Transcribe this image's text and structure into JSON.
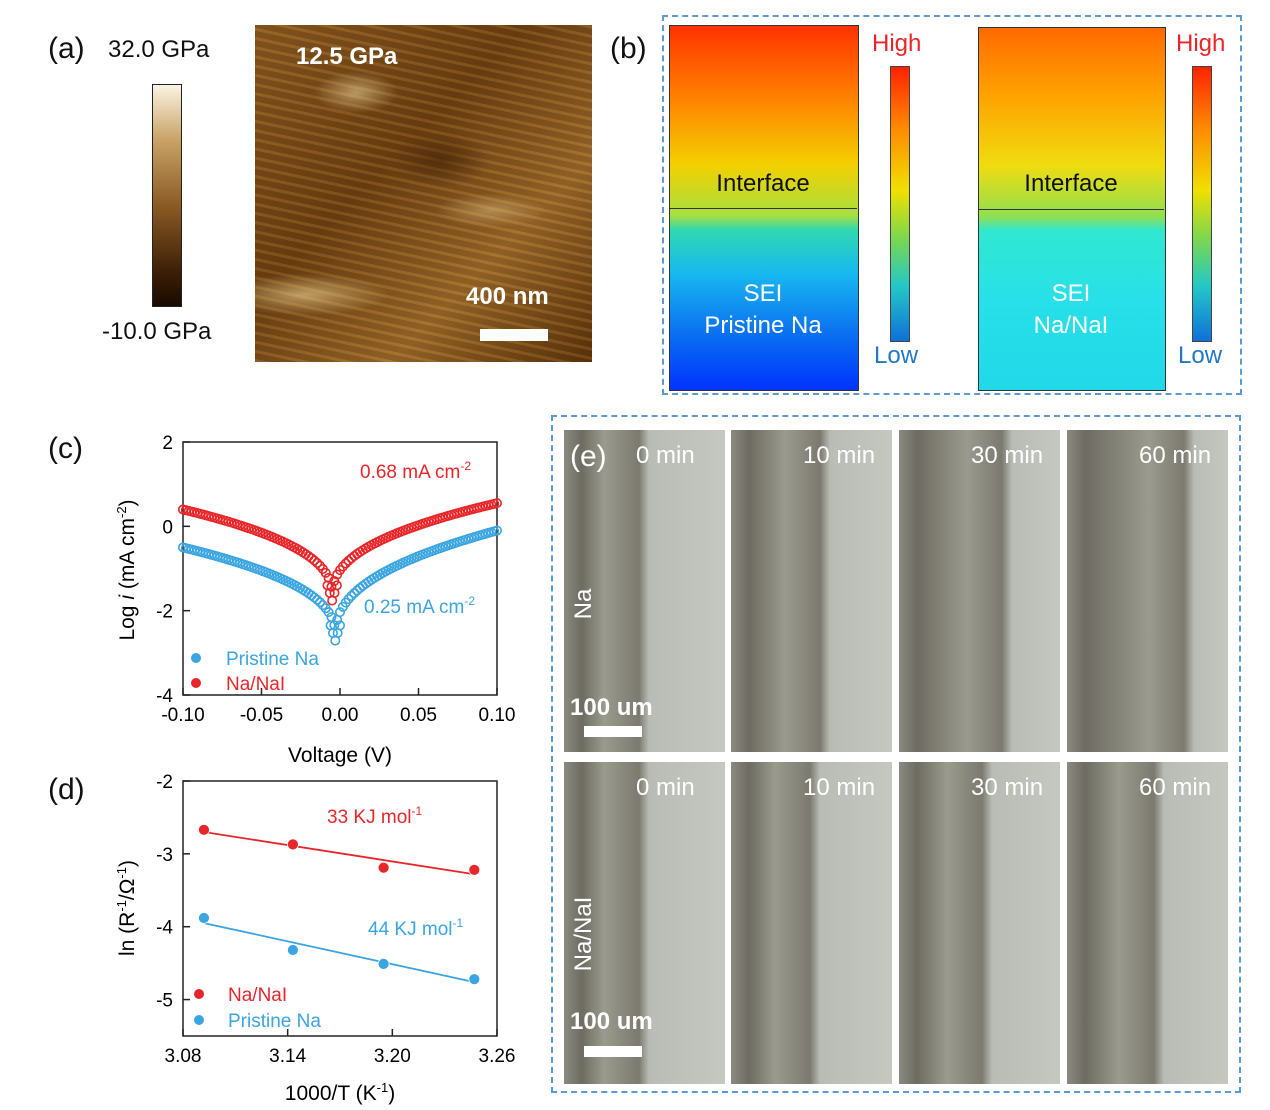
{
  "panel_labels": {
    "a": "(a)",
    "b": "(b)",
    "c": "(c)",
    "d": "(d)",
    "e": "(e)"
  },
  "panel_a": {
    "colorbar_max": "32.0 GPa",
    "colorbar_min": "-10.0 GPa",
    "image_value": "12.5 GPa",
    "scale_bar": "400 nm"
  },
  "panel_b": {
    "left": {
      "interface": "Interface",
      "sei_line1": "SEI",
      "sei_line2": "Pristine Na",
      "high": "High",
      "low": "Low"
    },
    "right": {
      "interface": "Interface",
      "sei_line1": "SEI",
      "sei_line2": "Na/NaI",
      "high": "High",
      "low": "Low"
    }
  },
  "panel_e": {
    "row_labels": [
      "Na",
      "Na/NaI"
    ],
    "times": [
      "0 min",
      "10 min",
      "30 min",
      "60 min"
    ],
    "scale_bar": "100 um"
  },
  "colors": {
    "red": "#e8262a",
    "blue": "#3aa5e0",
    "dash": "#5b9bd5"
  },
  "chart_data": [
    {
      "type": "scatter",
      "panel": "c",
      "xlabel": "Voltage (V)",
      "ylabel_parts": [
        "Log ",
        "i",
        " (mA cm",
        "-2",
        ")"
      ],
      "xlim": [
        -0.1,
        0.1
      ],
      "ylim": [
        -4,
        2
      ],
      "xticks": [
        "-0.10",
        "-0.05",
        "0.00",
        "0.05",
        "0.10"
      ],
      "yticks": [
        "2",
        "0",
        "-2",
        "-4"
      ],
      "annotations": [
        {
          "text": "0.68 mA cm",
          "sup": "-2",
          "color": "#e8262a"
        },
        {
          "text": "0.25 mA cm",
          "sup": "-2",
          "color": "#3aa5e0"
        }
      ],
      "series": [
        {
          "name": "Pristine Na",
          "color": "#3aa5e0",
          "ecorr": -0.003,
          "icorr_log": -2.6,
          "left_end": -0.5,
          "right_end": -0.1
        },
        {
          "name": "Na/NaI",
          "color": "#e8262a",
          "ecorr": -0.005,
          "icorr_log": -1.65,
          "left_end": 0.4,
          "right_end": 0.55
        }
      ]
    },
    {
      "type": "scatter",
      "panel": "d",
      "xlabel_parts": [
        "1000/T (K",
        "-1",
        ")"
      ],
      "ylabel_parts": [
        "ln (R",
        "-1",
        "/Ω",
        "-1",
        ")"
      ],
      "xlim": [
        3.08,
        3.26
      ],
      "ylim": [
        -5.5,
        -2
      ],
      "xticks": [
        "3.08",
        "3.14",
        "3.20",
        "3.26"
      ],
      "yticks": [
        "-2",
        "-3",
        "-4",
        "-5"
      ],
      "annotations": [
        {
          "text": "33 KJ mol",
          "sup": "-1",
          "color": "#e8262a"
        },
        {
          "text": "44 KJ mol",
          "sup": "-1",
          "color": "#3aa5e0"
        }
      ],
      "series": [
        {
          "name": "Na/NaI",
          "color": "#e8262a",
          "x": [
            3.092,
            3.143,
            3.195,
            3.247
          ],
          "y": [
            -2.67,
            -2.87,
            -3.19,
            -3.22
          ],
          "fit": [
            [
              3.092,
              -2.7
            ],
            [
              3.247,
              -3.28
            ]
          ]
        },
        {
          "name": "Pristine Na",
          "color": "#3aa5e0",
          "x": [
            3.092,
            3.143,
            3.195,
            3.247
          ],
          "y": [
            -3.88,
            -4.32,
            -4.51,
            -4.72
          ],
          "fit": [
            [
              3.092,
              -3.95
            ],
            [
              3.247,
              -4.76
            ]
          ]
        }
      ]
    }
  ]
}
